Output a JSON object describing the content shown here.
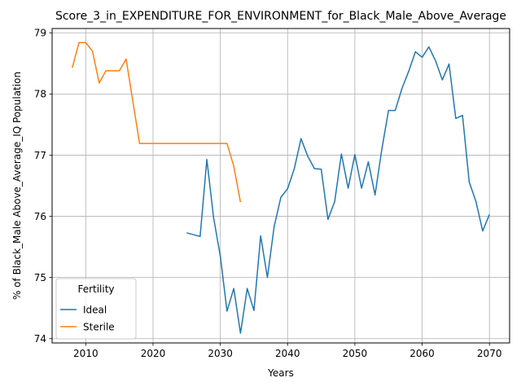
{
  "chart_data": {
    "type": "line",
    "title": "Score_3_in_EXPENDITURE_FOR_ENVIRONMENT_for_Black_Male_Above_Average",
    "xlabel": "Years",
    "ylabel": "% of Black_Male Above_Average_IQ Population",
    "xlim": [
      2005,
      2073
    ],
    "ylim": [
      73.93,
      79.07
    ],
    "xticks": [
      2010,
      2020,
      2030,
      2040,
      2050,
      2060,
      2070
    ],
    "yticks": [
      74,
      75,
      76,
      77,
      78,
      79
    ],
    "grid": true,
    "legend": {
      "title": "Fertility",
      "position": "lower-left"
    },
    "series": [
      {
        "name": "Ideal",
        "color": "#1f77b4",
        "x": [
          2025,
          2027,
          2028,
          2029,
          2030,
          2031,
          2032,
          2033,
          2034,
          2035,
          2036,
          2037,
          2038,
          2039,
          2040,
          2041,
          2042,
          2043,
          2044,
          2045,
          2046,
          2047,
          2048,
          2049,
          2050,
          2051,
          2052,
          2053,
          2054,
          2055,
          2056,
          2057,
          2058,
          2059,
          2060,
          2061,
          2062,
          2063,
          2064,
          2065,
          2066,
          2067,
          2068,
          2069,
          2070
        ],
        "y": [
          75.73,
          75.67,
          76.93,
          75.98,
          75.35,
          74.45,
          74.82,
          74.09,
          74.82,
          74.46,
          75.68,
          75.0,
          75.83,
          76.31,
          76.45,
          76.78,
          77.27,
          76.98,
          76.78,
          76.77,
          75.95,
          76.24,
          77.02,
          76.46,
          77.01,
          76.46,
          76.89,
          76.35,
          77.09,
          77.73,
          77.73,
          78.09,
          78.37,
          78.69,
          78.6,
          78.77,
          78.54,
          78.23,
          78.49,
          77.6,
          77.65,
          76.56,
          76.24,
          75.76,
          76.03
        ]
      },
      {
        "name": "Sterile",
        "color": "#ff7f0e",
        "x": [
          2008,
          2009,
          2010,
          2011,
          2012,
          2013,
          2014,
          2015,
          2016,
          2017,
          2018,
          2019,
          2020,
          2021,
          2022,
          2023,
          2024,
          2025,
          2026,
          2027,
          2028,
          2029,
          2030,
          2031,
          2032,
          2033
        ],
        "y": [
          78.43,
          78.84,
          78.84,
          78.7,
          78.18,
          78.38,
          78.38,
          78.38,
          78.57,
          77.88,
          77.19,
          77.19,
          77.19,
          77.19,
          77.19,
          77.19,
          77.19,
          77.19,
          77.19,
          77.19,
          77.19,
          77.19,
          77.19,
          77.19,
          76.82,
          76.23
        ]
      }
    ]
  }
}
